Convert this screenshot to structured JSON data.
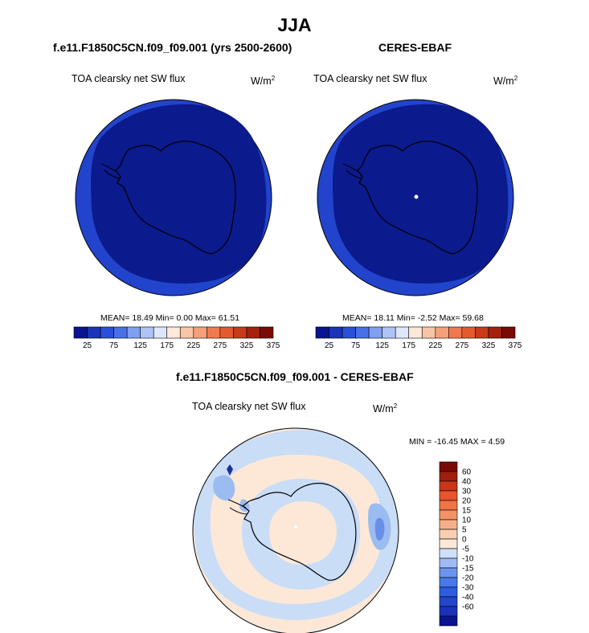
{
  "season": "JJA",
  "panel_left": {
    "title": "f.e11.F1850C5CN.f09_f09.001 (yrs 2500-2600)",
    "variable": "TOA clearsky net SW flux",
    "units_base": "W/m",
    "units_exp": "2",
    "stats": "MEAN=  18.49  Min=   0.00  Max=  61.51"
  },
  "panel_right": {
    "title": "CERES-EBAF",
    "variable": "TOA clearsky net SW flux",
    "units_base": "W/m",
    "units_exp": "2",
    "stats": "MEAN=  18.11  Min=  -2.52  Max=  59.68"
  },
  "panel_diff": {
    "title": "f.e11.F1850C5CN.f09_f09.001 - CERES-EBAF",
    "variable": "TOA clearsky net SW flux",
    "units_base": "W/m",
    "units_exp": "2",
    "stats": "MIN = -16.45 MAX =   4.59"
  },
  "colorbar_main": {
    "colors": [
      "#0a1490",
      "#1a33b8",
      "#2950d8",
      "#4a70e8",
      "#7f9ff0",
      "#afc3f5",
      "#dde6fa",
      "#fde8da",
      "#f9c5a8",
      "#f5a07a",
      "#f07a50",
      "#e45a2e",
      "#c83a1a",
      "#a5200d",
      "#7a0a06"
    ],
    "tick_labels": [
      "25",
      "75",
      "125",
      "175",
      "225",
      "275",
      "325",
      "375"
    ]
  },
  "colorbar_diff": {
    "colors": [
      "#0a1490",
      "#1a33b8",
      "#2446cc",
      "#2d5ee0",
      "#4a78ea",
      "#6a94ef",
      "#9fbaf4",
      "#d0dff9",
      "#fbe8d8",
      "#f8cfb2",
      "#f5b08a",
      "#f29265",
      "#ef7446",
      "#e8542d",
      "#c8361a",
      "#a01e0c",
      "#7a0a06"
    ],
    "labels": [
      "60",
      "40",
      "30",
      "20",
      "15",
      "10",
      "5",
      "0",
      "-5",
      "-10",
      "-15",
      "-20",
      "-30",
      "-40",
      "-60"
    ]
  },
  "map_colors": {
    "dark": "#0b1a8c",
    "outer_band": "#2244cc",
    "diff_base": "#fde8d8",
    "diff_light_blue": "#c9ddf7",
    "diff_mid_blue": "#9bbcf0",
    "diff_blue": "#6a8fe8",
    "diff_dark_blue": "#1b2f9c"
  }
}
